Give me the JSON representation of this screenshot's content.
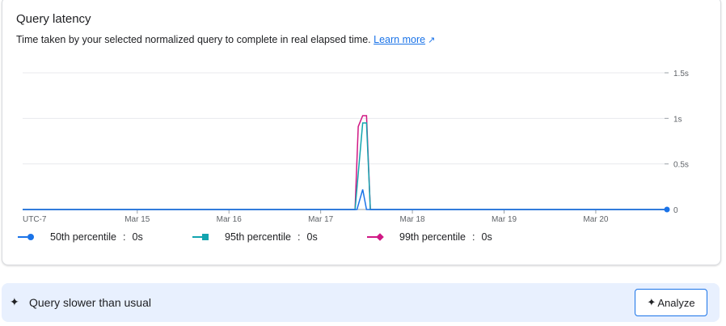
{
  "card": {
    "title": "Query latency",
    "subtitle": "Time taken by your selected normalized query to complete in real elapsed time.",
    "learn_more": "Learn more",
    "learn_more_icon": "external-link-icon"
  },
  "chart_data": {
    "type": "line",
    "title": "",
    "xlabel": "",
    "ylabel": "",
    "timezone_label": "UTC-7",
    "x_ticks": [
      "Mar 15",
      "Mar 16",
      "Mar 17",
      "Mar 18",
      "Mar 19",
      "Mar 20"
    ],
    "y_ticks": [
      "0",
      "0.5s",
      "1s",
      "1.5s"
    ],
    "ylim": [
      0,
      1.5
    ],
    "xlim": [
      "Mar 13 18:00",
      "Mar 20 18:00"
    ],
    "grid": true,
    "y_axis_side": "right",
    "legend_position": "bottom",
    "series": [
      {
        "name": "50th percentile",
        "current": "0s",
        "color": "#1a73e8",
        "marker": "circle",
        "points": [
          [
            "Mar 13 18:00",
            0
          ],
          [
            "Mar 17 09:30",
            0
          ],
          [
            "Mar 17 11:00",
            0.22
          ],
          [
            "Mar 17 12:00",
            0
          ],
          [
            "Mar 20 18:00",
            0
          ]
        ]
      },
      {
        "name": "95th percentile",
        "current": "0s",
        "color": "#12a4af",
        "marker": "square",
        "points": [
          [
            "Mar 13 18:00",
            0
          ],
          [
            "Mar 17 09:00",
            0
          ],
          [
            "Mar 17 11:00",
            0.95
          ],
          [
            "Mar 17 12:00",
            0.95
          ],
          [
            "Mar 17 13:00",
            0
          ],
          [
            "Mar 20 18:00",
            0
          ]
        ]
      },
      {
        "name": "99th percentile",
        "current": "0s",
        "color": "#d01884",
        "marker": "diamond",
        "points": [
          [
            "Mar 13 18:00",
            0
          ],
          [
            "Mar 17 09:00",
            0
          ],
          [
            "Mar 17 09:50",
            0.91
          ],
          [
            "Mar 17 11:00",
            1.03
          ],
          [
            "Mar 17 12:00",
            1.03
          ],
          [
            "Mar 17 13:00",
            0
          ],
          [
            "Mar 20 18:00",
            0
          ]
        ]
      }
    ]
  },
  "banner": {
    "icon": "sparkle-icon",
    "text": "Query slower than usual",
    "analyze_label": "Analyze",
    "analyze_icon": "sparkle-icon"
  }
}
